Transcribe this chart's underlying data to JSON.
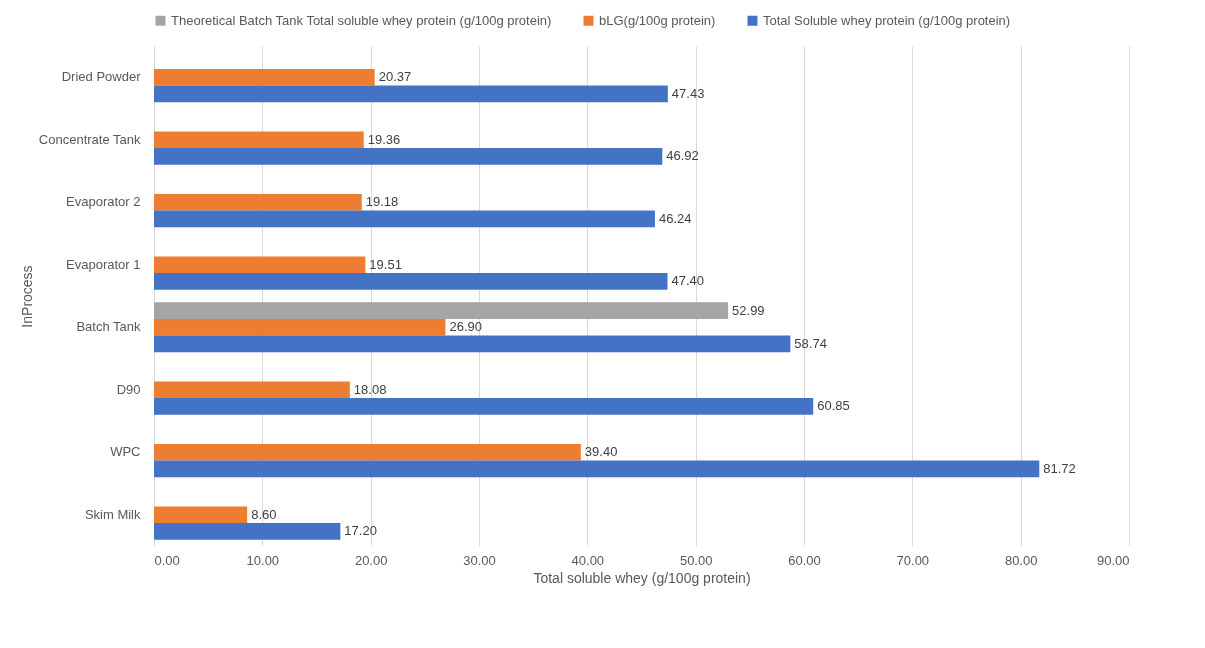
{
  "chart_data": {
    "type": "bar",
    "orientation": "horizontal",
    "xlabel": "Total soluble whey (g/100g protein)",
    "ylabel": "InProcess",
    "categories": [
      "Dried Powder",
      "Concentrate Tank",
      "Evaporator 2",
      "Evaporator 1",
      "Batch Tank",
      "D90",
      "WPC",
      "Skim Milk"
    ],
    "series": [
      {
        "name": "Theoretical Batch Tank Total soluble whey protein (g/100g protein)",
        "color": "#a5a5a5",
        "values": [
          null,
          null,
          null,
          null,
          52.99,
          null,
          null,
          null
        ],
        "value_labels": [
          null,
          null,
          null,
          null,
          "52.99",
          null,
          null,
          null
        ]
      },
      {
        "name": "bLG(g/100g protein)",
        "color": "#ed7d31",
        "values": [
          20.37,
          19.36,
          19.18,
          19.51,
          26.9,
          18.08,
          39.4,
          8.6
        ],
        "value_labels": [
          "20.37",
          "19.36",
          "19.18",
          "19.51",
          "26.90",
          "18.08",
          "39.40",
          "8.60"
        ]
      },
      {
        "name": "Total Soluble whey protein (g/100g protein)",
        "color": "#4472c4",
        "values": [
          47.43,
          46.92,
          46.24,
          47.4,
          58.74,
          60.85,
          81.72,
          17.2
        ],
        "value_labels": [
          "47.43",
          "46.92",
          "46.24",
          "47.40",
          "58.74",
          "60.85",
          "81.72",
          "17.20"
        ]
      }
    ],
    "xlim": [
      0,
      90
    ],
    "xticks": [
      {
        "value": 0,
        "label": "0.00"
      },
      {
        "value": 10,
        "label": "10.00"
      },
      {
        "value": 20,
        "label": "20.00"
      },
      {
        "value": 30,
        "label": "30.00"
      },
      {
        "value": 40,
        "label": "40.00"
      },
      {
        "value": 50,
        "label": "50.00"
      },
      {
        "value": 60,
        "label": "60.00"
      },
      {
        "value": 70,
        "label": "70.00"
      },
      {
        "value": 80,
        "label": "80.00"
      },
      {
        "value": 90,
        "label": "90.00"
      }
    ],
    "grid": "x",
    "legend": "top"
  }
}
